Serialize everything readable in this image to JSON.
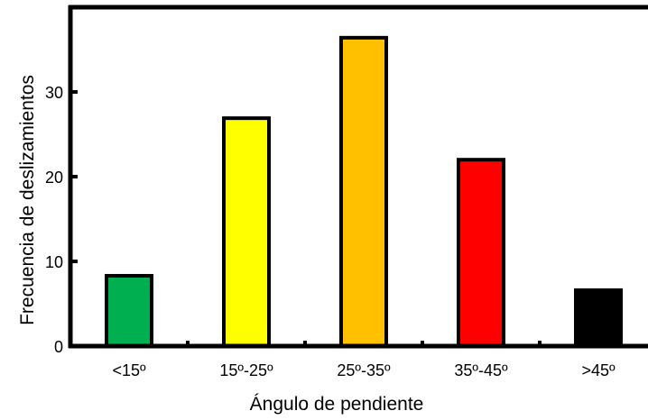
{
  "chart_data": {
    "type": "bar",
    "title": "",
    "xlabel": "Ángulo de pendiente",
    "ylabel": "Frecuencia de deslizamientos",
    "categories": [
      "<15º",
      "15º-25º",
      "25º-35º",
      "35º-45º",
      ">45º"
    ],
    "values": [
      8.3,
      26.9,
      36.4,
      22.0,
      6.6
    ],
    "colors": [
      "#00b050",
      "#ffff00",
      "#ffc000",
      "#ff0000",
      "#000000"
    ],
    "bar_outline": "#000000",
    "y_ticks": [
      0,
      10,
      20,
      30
    ],
    "ylim": [
      0,
      40
    ],
    "grid": false,
    "legend": "none"
  }
}
